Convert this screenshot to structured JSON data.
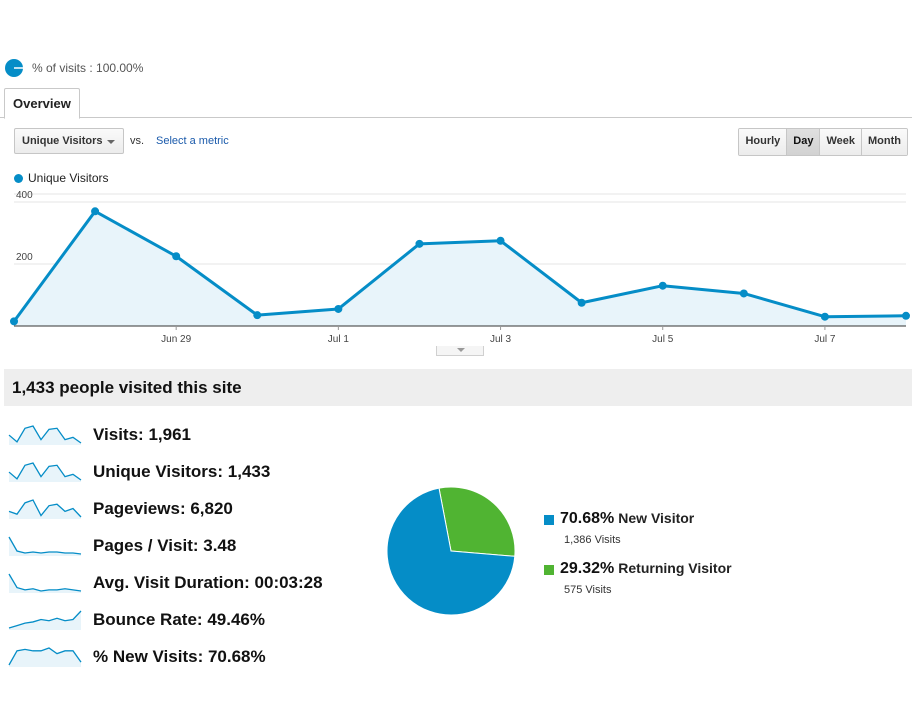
{
  "segment": {
    "text": "% of visits : 100.00%"
  },
  "tabs": [
    {
      "label": "Overview"
    }
  ],
  "controls": {
    "metric_select": "Unique Visitors",
    "vs_label": "vs.",
    "select_metric_link": "Select a metric",
    "periods": [
      "Hourly",
      "Day",
      "Week",
      "Month"
    ],
    "active_period": "Day"
  },
  "chart_data": {
    "type": "area",
    "legend": "Unique Visitors",
    "series_color": "#058dc7",
    "yticks": [
      "400",
      "200"
    ],
    "ylim": [
      0,
      400
    ],
    "x": [
      "Jun 27",
      "Jun 28",
      "Jun 29",
      "Jun 30",
      "Jul 1",
      "Jul 2",
      "Jul 3",
      "Jul 4",
      "Jul 5",
      "Jul 6",
      "Jul 7",
      "Jul 8"
    ],
    "values": [
      15,
      370,
      225,
      35,
      55,
      265,
      275,
      75,
      130,
      105,
      30,
      33
    ],
    "xtick_labels": [
      "Jun 29",
      "Jul 1",
      "Jul 3",
      "Jul 5",
      "Jul 7"
    ],
    "grid": true
  },
  "summary": {
    "title": "1,433 people visited this site",
    "metrics": [
      {
        "label": "Visits:",
        "value": "1,961",
        "spark": [
          10,
          4,
          16,
          18,
          6,
          15,
          16,
          6,
          8,
          3
        ]
      },
      {
        "label": "Unique Visitors:",
        "value": "1,433",
        "spark": [
          10,
          4,
          16,
          18,
          6,
          15,
          16,
          6,
          8,
          3
        ]
      },
      {
        "label": "Pageviews:",
        "value": "6,820",
        "spark": [
          10,
          8,
          16,
          18,
          7,
          14,
          15,
          10,
          12,
          6
        ]
      },
      {
        "label": "Pages / Visit:",
        "value": "3.48",
        "spark": [
          20,
          6,
          4,
          5,
          4,
          5,
          5,
          4,
          4,
          3
        ]
      },
      {
        "label": "Avg. Visit Duration:",
        "value": "00:03:28",
        "spark": [
          20,
          8,
          6,
          7,
          5,
          6,
          6,
          7,
          6,
          5
        ]
      },
      {
        "label": "Bounce Rate:",
        "value": "49.46%",
        "spark": [
          4,
          6,
          8,
          9,
          11,
          10,
          12,
          10,
          11,
          18
        ]
      },
      {
        "label": "% New Visits:",
        "value": "70.68%",
        "spark": [
          4,
          14,
          15,
          14,
          14,
          16,
          12,
          14,
          14,
          6
        ]
      }
    ]
  },
  "pie": {
    "slices": [
      {
        "pct": "70.68%",
        "name": "New Visitor",
        "visits": "1,386 Visits",
        "value": 70.68,
        "color": "#058dc7"
      },
      {
        "pct": "29.32%",
        "name": "Returning Visitor",
        "visits": "575 Visits",
        "value": 29.32,
        "color": "#50b432"
      }
    ]
  }
}
